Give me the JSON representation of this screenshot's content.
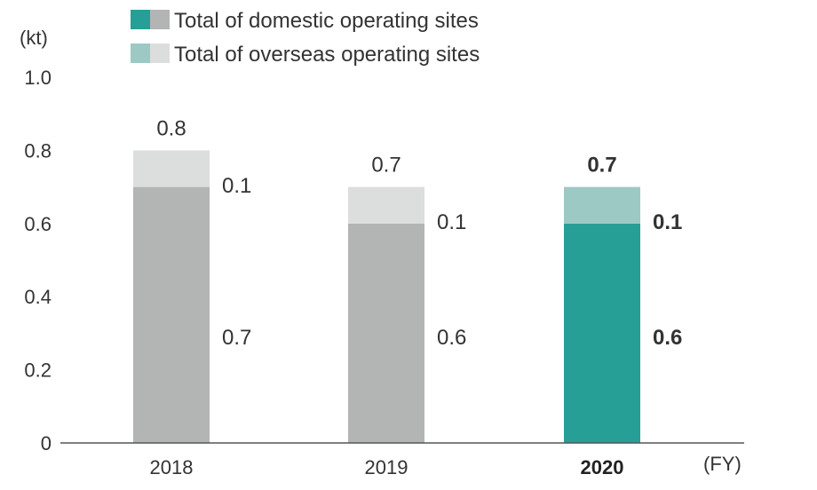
{
  "chart_data": {
    "type": "bar",
    "stacked": true,
    "y_unit": "(kt)",
    "x_unit": "(FY)",
    "ylim": [
      0,
      1.0
    ],
    "y_ticks": [
      "0",
      "0.2",
      "0.4",
      "0.6",
      "0.8",
      "1.0"
    ],
    "y_tick_values": [
      0,
      0.2,
      0.4,
      0.6,
      0.8,
      1.0
    ],
    "grid": false,
    "legend_position": "top",
    "categories": [
      {
        "label": "2018",
        "bold": false,
        "highlight": false,
        "total": 0.8,
        "total_label": "0.8",
        "domestic": 0.7,
        "domestic_label": "0.7",
        "overseas": 0.1,
        "overseas_label": "0.1"
      },
      {
        "label": "2019",
        "bold": false,
        "highlight": false,
        "total": 0.7,
        "total_label": "0.7",
        "domestic": 0.6,
        "domestic_label": "0.6",
        "overseas": 0.1,
        "overseas_label": "0.1"
      },
      {
        "label": "2020",
        "bold": true,
        "highlight": true,
        "total": 0.7,
        "total_label": "0.7",
        "domestic": 0.6,
        "domestic_label": "0.6",
        "overseas": 0.1,
        "overseas_label": "0.1"
      }
    ],
    "series": [
      {
        "key": "domestic",
        "name": "Total of domestic operating sites",
        "color_highlight": "#26a096",
        "color_other": "#b3b5b4"
      },
      {
        "key": "overseas",
        "name": "Total of overseas operating sites",
        "color_highlight": "#9dc9c5",
        "color_other": "#dcdedd"
      }
    ],
    "label_colors": {
      "default": "#333333",
      "domestic_highlight": "#26a096",
      "overseas_highlight": "#9dc9c5"
    }
  }
}
